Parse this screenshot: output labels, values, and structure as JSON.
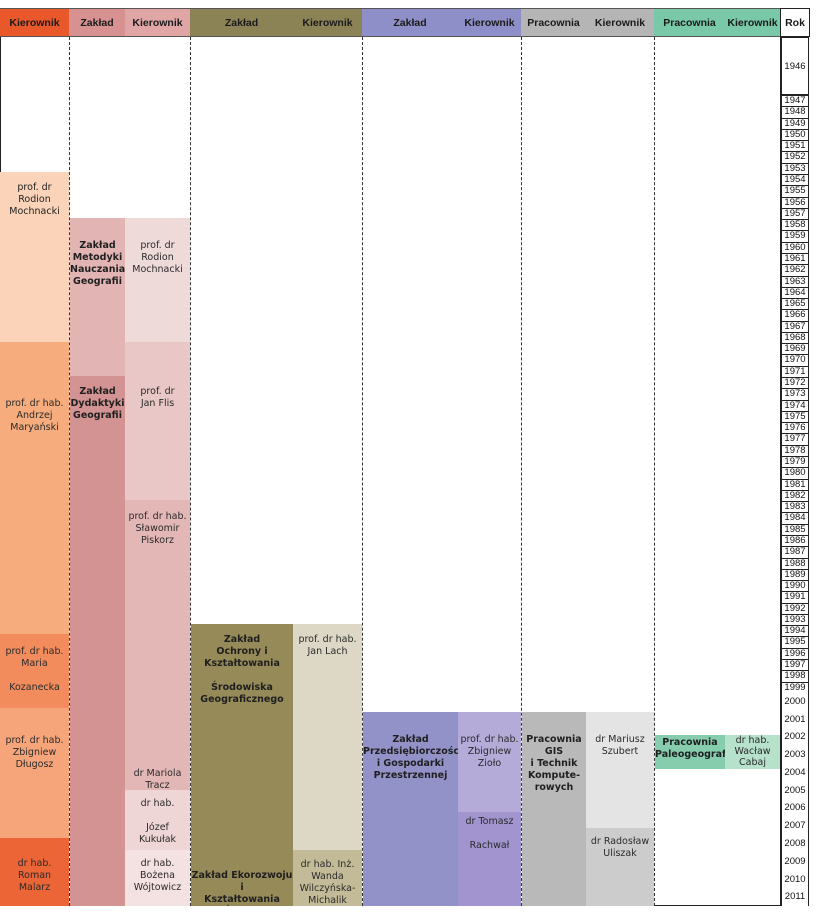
{
  "headers": [
    {
      "label": "Kierownik",
      "color": "#e9582a"
    },
    {
      "label": "Zakład",
      "color": "#d89191"
    },
    {
      "label": "Kierownik",
      "color": "#e0a6a6"
    },
    {
      "label": "Zakład",
      "color": "#8b8356"
    },
    {
      "label": "Kierownik",
      "color": "#8b8356"
    },
    {
      "label": "Zakład",
      "color": "#8e8ec8"
    },
    {
      "label": "Kierownik",
      "color": "#8e8ec8"
    },
    {
      "label": "Pracownia",
      "color": "#b5b5b5"
    },
    {
      "label": "Kierownik",
      "color": "#b5b5b5"
    },
    {
      "label": "Pracownia",
      "color": "#79c8a8"
    },
    {
      "label": "Kierownik",
      "color": "#79c8a8"
    },
    {
      "label": "Rok",
      "color": "#ffffff"
    }
  ],
  "col1": {
    "heads": [
      {
        "text": "prof. dr\nRodion\nMochnacki",
        "color": "#fad3b8"
      },
      {
        "text": "prof. dr hab.\nAndrzej\nMaryański",
        "color": "#f6ac7d"
      },
      {
        "text": "prof. dr hab.\nMaria\n\nKozanecka",
        "color": "#f28c5c"
      },
      {
        "text": "prof. dr hab.\nZbigniew\nDługosz",
        "color": "#f6a57a"
      },
      {
        "text": "dr hab.\nRoman\nMalarz",
        "color": "#ec6536"
      }
    ]
  },
  "col2": {
    "units": [
      {
        "text": "Zakład\nMetodyki\nNauczania\nGeografii",
        "color": "#e2b4b4"
      },
      {
        "text": "Zakład\nDydaktyki\nGeografii",
        "color": "#d49393"
      }
    ],
    "heads": [
      {
        "text": "prof. dr\nRodion\nMochnacki",
        "color": "#efdada"
      },
      {
        "text": "prof. dr\nJan Flis",
        "color": "#e9c7c7"
      },
      {
        "text": "prof. dr hab.\nSławomir\nPiskorz",
        "color": "#e4b7b7"
      },
      {
        "text": "dr Mariola\nTracz",
        "color": "#e4b7b7"
      },
      {
        "text": "dr hab.\n\nJózef\nKukułak",
        "color": "#efd6d6"
      },
      {
        "text": "dr hab.\nBożena\nWójtowicz",
        "color": "#f4e1e1"
      }
    ]
  },
  "col3": {
    "units": [
      {
        "text": "Zakład\nOchrony i\nKształtowania\n\nŚrodowiska\nGeograficznego",
        "color": "#958a58"
      },
      {
        "text": "Zakład Ekorozwoju i\nKształtowania Środo-\nwiska Geograficznego",
        "color": "#958a58"
      }
    ],
    "heads": [
      {
        "text": "prof. dr hab.\nJan Lach",
        "color": "#ddd8c6"
      },
      {
        "text": "dr hab. Inż.\nWanda\nWilczyńska-\nMichalik",
        "color": "#c3bb98"
      }
    ]
  },
  "col4": {
    "units": [
      {
        "text": "Zakład\nPrzedsiębiorczości\ni Gospodarki\nPrzestrzennej",
        "color": "#9292c9"
      }
    ],
    "heads": [
      {
        "text": "prof. dr hab.\nZbigniew\nZioło",
        "color": "#b4abd9"
      },
      {
        "text": "dr Tomasz\n\nRachwał",
        "color": "#a194cf"
      }
    ]
  },
  "col5": {
    "units": [
      {
        "text": "Pracownia\nGIS\ni Technik\nKompute-\nrowych",
        "color": "#b9b9b9"
      }
    ],
    "heads": [
      {
        "text": "dr Mariusz\nSzubert",
        "color": "#e4e4e4"
      },
      {
        "text": "dr Radosław\nUliszak",
        "color": "#cccccc"
      }
    ]
  },
  "col6": {
    "units": [
      {
        "text": "Pracownia\nPaleogeografii",
        "color": "#86cdae"
      }
    ],
    "heads": [
      {
        "text": "dr hab.\nWacław\nCabaj",
        "color": "#b6e2cc"
      }
    ]
  },
  "years": {
    "first": "1946",
    "list": [
      "1947",
      "1948",
      "1949",
      "1950",
      "1951",
      "1952",
      "1953",
      "1954",
      "1955",
      "1956",
      "1957",
      "1958",
      "1959",
      "1960",
      "1961",
      "1962",
      "1963",
      "1964",
      "1965",
      "1966",
      "1967",
      "1968",
      "1969",
      "1970",
      "1971",
      "1972",
      "1973",
      "1974",
      "1975",
      "1976",
      "1977",
      "1978",
      "1979",
      "1980",
      "1981",
      "1982",
      "1983",
      "1984",
      "1985",
      "1986",
      "1987",
      "1988",
      "1989",
      "1990",
      "1991",
      "1992",
      "1993",
      "1994",
      "1995",
      "1996",
      "1997",
      "1998",
      "1999",
      "2000",
      "2001",
      "2002",
      "2003",
      "2004",
      "2005",
      "2006",
      "2007",
      "2008",
      "2009",
      "2010",
      "2011"
    ]
  }
}
